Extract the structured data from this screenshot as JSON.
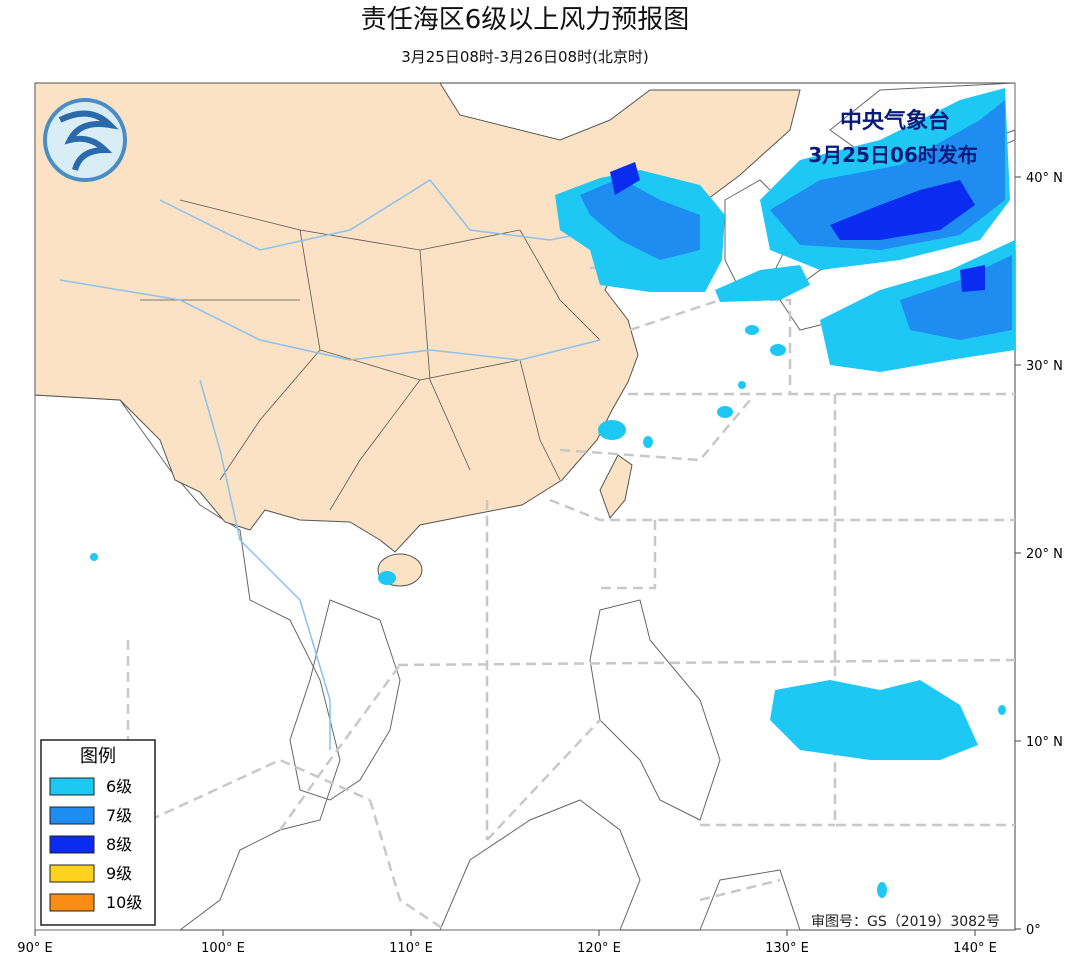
{
  "header": {
    "title": "责任海区6级以上风力预报图",
    "subtitle": "3月25日08时-3月26日08时(北京时)"
  },
  "issuer": {
    "name": "中央气象台",
    "issued": "3月25日06时发布"
  },
  "legend": {
    "title": "图例",
    "items": [
      {
        "label": "6级",
        "color": "#1ec8f5"
      },
      {
        "label": "7级",
        "color": "#1e8cf0"
      },
      {
        "label": "8级",
        "color": "#0a2cf0"
      },
      {
        "label": "9级",
        "color": "#ffd21e"
      },
      {
        "label": "10级",
        "color": "#fa8c14"
      }
    ]
  },
  "axes": {
    "x_labels": [
      "90° E",
      "100° E",
      "110° E",
      "120° E",
      "130° E",
      "140° E"
    ],
    "y_labels": [
      "40° N",
      "30° N",
      "20° N",
      "10° N",
      "0°"
    ]
  },
  "review_number": "审图号：GS（2019）3082号"
}
